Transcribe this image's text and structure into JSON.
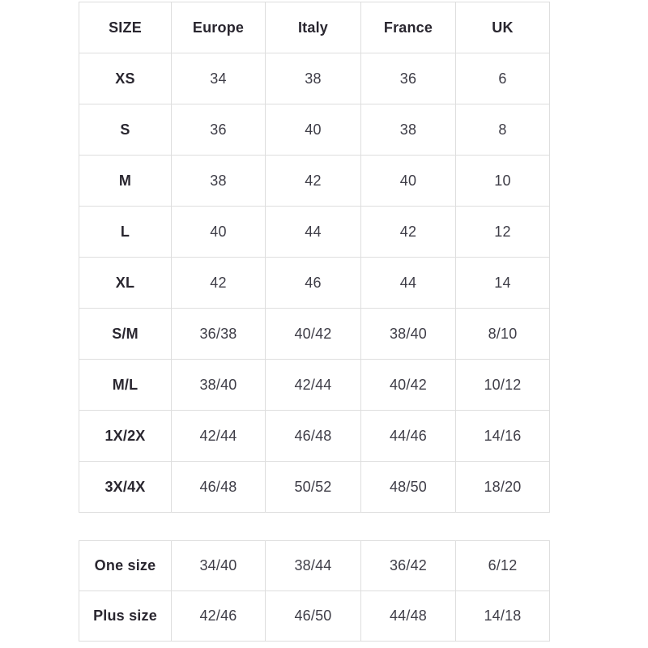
{
  "colors": {
    "background": "#ffffff",
    "border": "#dedede",
    "header_text": "#29262f",
    "value_text": "#3e3d47"
  },
  "size_table": {
    "headers": [
      "SIZE",
      "Europe",
      "Italy",
      "France",
      "UK"
    ],
    "rows": [
      {
        "label": "XS",
        "values": [
          "34",
          "38",
          "36",
          "6"
        ]
      },
      {
        "label": "S",
        "values": [
          "36",
          "40",
          "38",
          "8"
        ]
      },
      {
        "label": "M",
        "values": [
          "38",
          "42",
          "40",
          "10"
        ]
      },
      {
        "label": "L",
        "values": [
          "40",
          "44",
          "42",
          "12"
        ]
      },
      {
        "label": "XL",
        "values": [
          "42",
          "46",
          "44",
          "14"
        ]
      },
      {
        "label": "S/M",
        "values": [
          "36/38",
          "40/42",
          "38/40",
          "8/10"
        ]
      },
      {
        "label": "M/L",
        "values": [
          "38/40",
          "42/44",
          "40/42",
          "10/12"
        ]
      },
      {
        "label": "1X/2X",
        "values": [
          "42/44",
          "46/48",
          "44/46",
          "14/16"
        ]
      },
      {
        "label": "3X/4X",
        "values": [
          "46/48",
          "50/52",
          "48/50",
          "18/20"
        ]
      }
    ]
  },
  "special_sizes_table": {
    "rows": [
      {
        "label": "One size",
        "values": [
          "34/40",
          "38/44",
          "36/42",
          "6/12"
        ]
      },
      {
        "label": "Plus size",
        "values": [
          "42/46",
          "46/50",
          "44/48",
          "14/18"
        ]
      }
    ]
  }
}
